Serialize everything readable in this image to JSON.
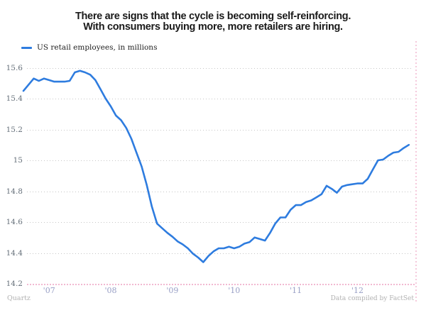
{
  "title": {
    "line1": "There are signs that the cycle is becoming self-reinforcing.",
    "line2": "With consumers buying more, more retailers are hiring."
  },
  "legend": {
    "label": "US retail employees, in millions"
  },
  "footer": {
    "brand": "Quartz",
    "credit": "Data compiled by FactSet"
  },
  "colors": {
    "line": "#2e7cdf",
    "grid": "#c6c6c6",
    "baseline": "#f2b9d1",
    "title": "#1a1a1a",
    "ylabel": "#66707a",
    "xlabel": "#99a0c6",
    "legend_text": "#222222",
    "footer": "#b2b2b2"
  },
  "chart_data": {
    "type": "line",
    "title": "There are signs that the cycle is becoming self-reinforcing. With consumers buying more, more retailers are hiring.",
    "legend_position": "top-left",
    "grid": "dotted-horizontal",
    "ylim": [
      14.2,
      15.66
    ],
    "y_ticks": [
      {
        "label": "15.6",
        "value": 15.6
      },
      {
        "label": "15.4",
        "value": 15.4
      },
      {
        "label": "15.2",
        "value": 15.2
      },
      {
        "label": "15",
        "value": 15.0
      },
      {
        "label": "14.8",
        "value": 14.8
      },
      {
        "label": "14.6",
        "value": 14.6
      },
      {
        "label": "14.4",
        "value": 14.4
      },
      {
        "label": "14.2",
        "value": 14.2
      }
    ],
    "x_ticks": [
      {
        "label": "'07",
        "month_index": 5
      },
      {
        "label": "'08",
        "month_index": 17
      },
      {
        "label": "'09",
        "month_index": 29
      },
      {
        "label": "'10",
        "month_index": 41
      },
      {
        "label": "'11",
        "month_index": 53
      },
      {
        "label": "'12",
        "month_index": 65
      }
    ],
    "series": [
      {
        "name": "US retail employees, in millions",
        "start": "Aug 2006",
        "frequency": "monthly",
        "values": [
          15.45,
          15.49,
          15.53,
          15.515,
          15.53,
          15.52,
          15.51,
          15.51,
          15.51,
          15.515,
          15.57,
          15.58,
          15.57,
          15.555,
          15.52,
          15.46,
          15.4,
          15.35,
          15.29,
          15.26,
          15.21,
          15.14,
          15.05,
          14.96,
          14.84,
          14.7,
          14.59,
          14.56,
          14.53,
          14.505,
          14.475,
          14.455,
          14.43,
          14.395,
          14.37,
          14.34,
          14.38,
          14.41,
          14.43,
          14.43,
          14.44,
          14.43,
          14.44,
          14.46,
          14.47,
          14.5,
          14.49,
          14.48,
          14.53,
          14.59,
          14.63,
          14.63,
          14.68,
          14.71,
          14.71,
          14.73,
          14.74,
          14.76,
          14.78,
          14.835,
          14.815,
          14.79,
          14.83,
          14.84,
          14.845,
          14.85,
          14.85,
          14.88,
          14.94,
          15.0,
          15.005,
          15.03,
          15.05,
          15.055,
          15.08,
          15.1
        ]
      }
    ]
  }
}
